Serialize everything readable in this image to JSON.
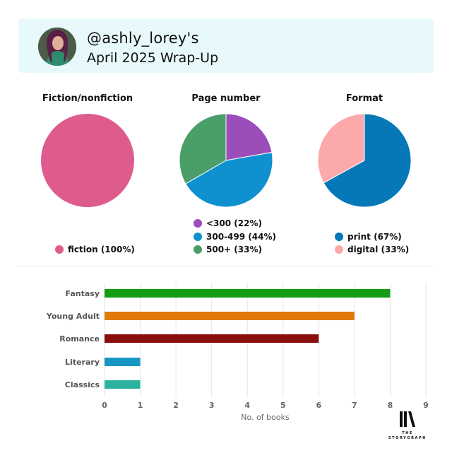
{
  "header": {
    "username": "@ashly_lorey's",
    "title": "April 2025 Wrap-Up"
  },
  "logo": {
    "line1": "THE",
    "line2": "STORYGRAPH"
  },
  "chart_data": [
    {
      "type": "pie",
      "title": "Fiction/nonfiction",
      "slices": [
        {
          "label": "fiction (100%)",
          "value": 100,
          "color": "#dd5b8d"
        }
      ]
    },
    {
      "type": "pie",
      "title": "Page number",
      "slices": [
        {
          "label": "<300 (22%)",
          "value": 22,
          "color": "#9b4dba"
        },
        {
          "label": "300-499 (44%)",
          "value": 44,
          "color": "#0f91cf"
        },
        {
          "label": "500+ (33%)",
          "value": 33,
          "color": "#4a9e67"
        }
      ]
    },
    {
      "type": "pie",
      "title": "Format",
      "slices": [
        {
          "label": "print (67%)",
          "value": 67,
          "color": "#0678b8"
        },
        {
          "label": "digital (33%)",
          "value": 33,
          "color": "#fca9ab"
        }
      ]
    },
    {
      "type": "bar",
      "orientation": "horizontal",
      "categories": [
        "Fantasy",
        "Young Adult",
        "Romance",
        "Literary",
        "Classics"
      ],
      "values": [
        8,
        7,
        6,
        1,
        1
      ],
      "colors": [
        "#139c14",
        "#e07a0a",
        "#8a0e0e",
        "#1697c3",
        "#2bb3a0"
      ],
      "xlabel": "No. of books",
      "xlim": [
        0,
        9
      ],
      "xticks": [
        "0",
        "1",
        "2",
        "3",
        "4",
        "5",
        "6",
        "7",
        "8",
        "9"
      ],
      "grid": true
    }
  ]
}
